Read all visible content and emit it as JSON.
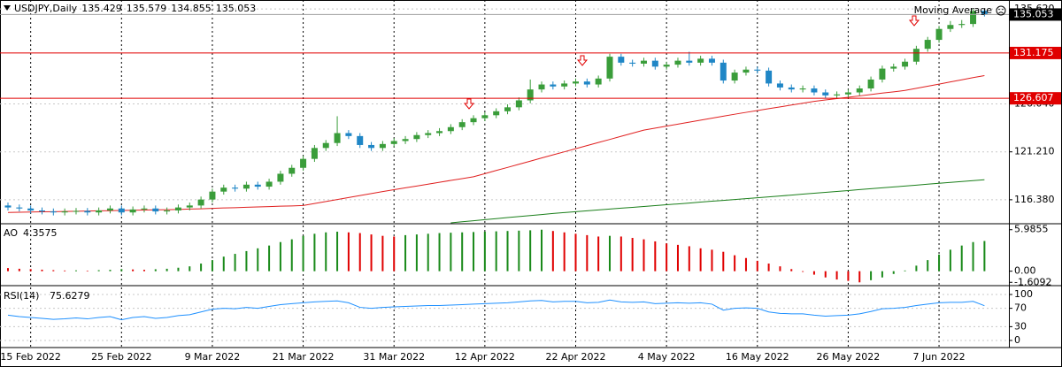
{
  "chart_data": [
    {
      "type": "candlestick",
      "symbol": "USDJPY,Daily",
      "indicator": "Moving Average",
      "categories": [
        null,
        null,
        "15 Feb 2022",
        null,
        null,
        null,
        null,
        null,
        null,
        null,
        "25 Feb 2022",
        null,
        null,
        null,
        null,
        null,
        null,
        null,
        "9 Mar 2022",
        null,
        null,
        null,
        null,
        null,
        null,
        null,
        "21 Mar 2022",
        null,
        null,
        null,
        null,
        null,
        null,
        null,
        "31 Mar 2022",
        null,
        null,
        null,
        null,
        null,
        null,
        null,
        "12 Apr 2022",
        null,
        null,
        null,
        null,
        null,
        null,
        null,
        "22 Apr 2022",
        null,
        null,
        null,
        null,
        null,
        null,
        null,
        "4 May 2022",
        null,
        null,
        null,
        null,
        null,
        null,
        null,
        "16 May 2022",
        null,
        null,
        null,
        null,
        null,
        null,
        null,
        "26 May 2022",
        null,
        null,
        null,
        null,
        null,
        null,
        null,
        "7 Jun 2022",
        null,
        null,
        null,
        null
      ],
      "open": [
        115.8,
        115.6,
        115.5,
        115.3,
        115.2,
        115.1,
        115.2,
        115.25,
        115.1,
        115.3,
        115.5,
        115.1,
        115.4,
        115.5,
        115.2,
        115.3,
        115.6,
        115.8,
        116.4,
        117.2,
        117.6,
        117.5,
        117.9,
        117.7,
        118.2,
        119.0,
        119.6,
        120.5,
        121.6,
        122.1,
        123.1,
        122.8,
        121.9,
        121.6,
        122.0,
        122.3,
        122.5,
        122.9,
        123.1,
        123.3,
        123.7,
        124.2,
        124.6,
        124.9,
        125.3,
        125.7,
        126.4,
        127.5,
        128.0,
        127.8,
        128.1,
        128.3,
        128.0,
        128.6,
        130.8,
        130.2,
        130.1,
        130.4,
        129.8,
        130.0,
        130.4,
        130.2,
        130.6,
        130.2,
        128.4,
        129.2,
        129.5,
        129.4,
        128.1,
        127.7,
        127.5,
        127.6,
        127.2,
        126.9,
        127.0,
        127.2,
        127.6,
        128.5,
        129.6,
        129.8,
        130.3,
        131.6,
        132.5,
        133.6,
        134.0,
        134.1,
        135.429
      ],
      "high": [
        116.1,
        115.9,
        115.8,
        115.6,
        115.5,
        115.5,
        115.55,
        115.55,
        115.6,
        115.8,
        115.8,
        115.7,
        115.8,
        115.8,
        115.6,
        115.9,
        116.1,
        116.7,
        117.5,
        117.9,
        117.9,
        118.2,
        118.2,
        118.5,
        119.3,
        119.9,
        120.8,
        121.9,
        122.4,
        124.8,
        123.4,
        123.1,
        122.2,
        122.3,
        122.6,
        122.8,
        123.2,
        123.4,
        123.6,
        124.0,
        124.5,
        124.9,
        125.2,
        125.6,
        126.0,
        126.7,
        128.5,
        128.3,
        128.3,
        128.4,
        128.6,
        128.6,
        128.9,
        131.1,
        131.1,
        130.5,
        130.7,
        130.7,
        130.3,
        130.7,
        131.3,
        130.9,
        130.9,
        130.5,
        129.5,
        129.8,
        129.8,
        129.7,
        128.4,
        128.0,
        127.9,
        127.9,
        127.5,
        127.3,
        127.5,
        127.9,
        128.8,
        129.9,
        130.1,
        130.6,
        131.9,
        132.8,
        133.9,
        134.4,
        134.5,
        135.6,
        135.579
      ],
      "low": [
        115.3,
        115.2,
        115.0,
        114.9,
        114.8,
        114.8,
        114.9,
        114.8,
        114.8,
        115.0,
        114.8,
        114.8,
        115.1,
        114.9,
        114.9,
        115.0,
        115.3,
        115.5,
        116.1,
        116.9,
        117.2,
        117.2,
        117.4,
        117.4,
        117.9,
        118.7,
        119.3,
        120.2,
        121.3,
        121.8,
        122.5,
        121.6,
        121.3,
        121.3,
        121.7,
        122.0,
        122.2,
        122.6,
        122.8,
        123.0,
        123.4,
        123.9,
        124.3,
        124.6,
        125.0,
        125.4,
        126.1,
        127.2,
        127.5,
        127.5,
        127.8,
        127.7,
        127.7,
        128.3,
        129.9,
        129.8,
        129.8,
        129.5,
        129.5,
        129.7,
        129.9,
        129.9,
        129.9,
        128.1,
        128.1,
        128.9,
        129.1,
        127.8,
        127.4,
        127.2,
        127.2,
        126.9,
        126.6,
        126.6,
        126.7,
        126.9,
        127.3,
        128.2,
        129.3,
        129.5,
        130.0,
        131.3,
        132.2,
        133.3,
        133.7,
        133.8,
        134.855
      ],
      "close": [
        115.6,
        115.5,
        115.3,
        115.2,
        115.1,
        115.2,
        115.25,
        115.1,
        115.3,
        115.5,
        115.1,
        115.4,
        115.5,
        115.2,
        115.3,
        115.6,
        115.8,
        116.4,
        117.2,
        117.6,
        117.5,
        117.9,
        117.7,
        118.2,
        119.0,
        119.6,
        120.5,
        121.6,
        122.1,
        123.1,
        122.8,
        121.9,
        121.6,
        122.0,
        122.3,
        122.5,
        122.9,
        123.1,
        123.3,
        123.7,
        124.2,
        124.6,
        124.9,
        125.3,
        125.7,
        126.4,
        127.5,
        128.0,
        127.8,
        128.1,
        128.3,
        128.0,
        128.6,
        130.8,
        130.2,
        130.1,
        130.4,
        129.8,
        130.0,
        130.4,
        130.2,
        130.6,
        130.2,
        128.4,
        129.2,
        129.5,
        129.4,
        128.1,
        127.7,
        127.5,
        127.6,
        127.2,
        126.9,
        127.0,
        127.2,
        127.6,
        128.5,
        129.6,
        129.8,
        130.3,
        131.6,
        132.5,
        133.6,
        134.0,
        134.1,
        135.4,
        135.053
      ],
      "up_color": "#3a9d3a",
      "down_color": "#1f86c6",
      "series": [
        {
          "color": "#e02020",
          "values": [
            115.1,
            115.12,
            115.14,
            115.16,
            115.18,
            115.2,
            115.22,
            115.24,
            115.26,
            115.28,
            115.3,
            115.32,
            115.34,
            115.36,
            115.38,
            115.4,
            115.44,
            115.47,
            115.51,
            115.55,
            115.58,
            115.62,
            115.65,
            115.69,
            115.73,
            115.76,
            115.8,
            116.0,
            116.2,
            116.4,
            116.6,
            116.8,
            117.0,
            117.2,
            117.39,
            117.58,
            117.76,
            117.95,
            118.14,
            118.33,
            118.51,
            118.7,
            119.01,
            119.33,
            119.64,
            119.96,
            120.27,
            120.59,
            120.9,
            121.21,
            121.53,
            121.84,
            122.15,
            122.46,
            122.78,
            123.09,
            123.4,
            123.6,
            123.8,
            124.0,
            124.2,
            124.4,
            124.6,
            124.8,
            125.0,
            125.19,
            125.37,
            125.56,
            125.74,
            125.93,
            126.11,
            126.3,
            126.44,
            126.58,
            126.71,
            126.85,
            126.99,
            127.13,
            127.26,
            127.4,
            127.61,
            127.83,
            128.04,
            128.26,
            128.47,
            128.69,
            128.9
          ]
        },
        {
          "color": "#1b7f1b",
          "values": [
            null,
            null,
            null,
            null,
            null,
            null,
            null,
            null,
            null,
            null,
            null,
            null,
            null,
            null,
            null,
            null,
            null,
            null,
            null,
            null,
            null,
            null,
            null,
            null,
            null,
            null,
            null,
            null,
            null,
            null,
            null,
            null,
            null,
            null,
            null,
            null,
            null,
            null,
            null,
            114.05,
            114.16,
            114.26,
            114.37,
            114.47,
            114.58,
            114.68,
            114.79,
            114.89,
            115.0,
            115.09,
            115.18,
            115.26,
            115.35,
            115.44,
            115.53,
            115.61,
            115.7,
            115.79,
            115.88,
            115.96,
            116.05,
            116.14,
            116.23,
            116.31,
            116.4,
            116.49,
            116.58,
            116.67,
            116.76,
            116.85,
            116.95,
            117.04,
            117.13,
            117.22,
            117.31,
            117.4,
            117.49,
            117.58,
            117.67,
            117.76,
            117.85,
            117.95,
            118.04,
            118.13,
            118.22,
            118.31,
            118.4
          ]
        }
      ],
      "hlines": [
        {
          "value": 131.175,
          "color": "#e00000"
        },
        {
          "value": 126.607,
          "color": "#e00000"
        }
      ],
      "ylim": [
        114.05,
        136.34
      ],
      "yticks": [
        {
          "value": 116.38,
          "label": "116.380"
        },
        {
          "value": 121.21,
          "label": "121.210"
        },
        {
          "value": 126.04,
          "label": "126.040"
        },
        {
          "value": 135.62,
          "label": "135.620"
        }
      ],
      "grid": true
    },
    {
      "type": "bar",
      "title": "AO",
      "values": [
        0.45,
        0.35,
        0.3,
        0.22,
        0.15,
        0.1,
        0.12,
        0.08,
        0.15,
        0.2,
        0.3,
        0.25,
        0.2,
        0.28,
        0.35,
        0.5,
        0.7,
        1.1,
        1.6,
        2.1,
        2.5,
        2.9,
        3.3,
        3.7,
        4.2,
        4.6,
        5.1,
        5.4,
        5.6,
        5.7,
        5.6,
        5.5,
        5.3,
        5.1,
        5.0,
        5.2,
        5.3,
        5.4,
        5.5,
        5.55,
        5.6,
        5.65,
        5.7,
        5.75,
        5.8,
        5.85,
        5.9,
        5.9855,
        5.8,
        5.6,
        5.4,
        5.2,
        5.0,
        5.1,
        5.0,
        4.8,
        4.6,
        4.3,
        4.0,
        3.8,
        3.6,
        3.3,
        3.1,
        2.8,
        2.3,
        1.9,
        1.5,
        1.1,
        0.7,
        0.3,
        -0.1,
        -0.5,
        -0.9,
        -1.2,
        -1.4,
        -1.6092,
        -1.3,
        -0.9,
        -0.4,
        0.1,
        0.8,
        1.6,
        2.4,
        3.1,
        3.7,
        4.2,
        4.3575
      ],
      "up_color": "#1a8a1a",
      "down_color": "#e00000",
      "ylim": [
        -1.83,
        6.59
      ],
      "yticks": [
        -1.6092,
        {
          "value": 0,
          "label": "0.00"
        },
        5.9855
      ],
      "grid": false
    },
    {
      "type": "line",
      "title": "RSI(14)",
      "values": [
        55,
        52,
        50,
        48,
        46,
        47,
        49,
        47,
        50,
        52,
        45,
        50,
        52,
        48,
        50,
        54,
        56,
        62,
        68,
        70,
        69,
        72,
        70,
        74,
        78,
        80,
        82,
        84,
        85,
        86,
        82,
        72,
        70,
        72,
        73,
        74,
        75,
        76,
        76,
        77,
        78,
        79,
        80,
        81,
        82,
        84,
        86,
        87,
        84,
        85,
        85,
        82,
        83,
        88,
        84,
        83,
        84,
        80,
        81,
        82,
        81,
        82,
        79,
        66,
        70,
        71,
        70,
        62,
        59,
        58,
        58,
        55,
        53,
        54,
        55,
        58,
        63,
        69,
        70,
        72,
        76,
        79,
        82,
        83,
        83,
        85,
        75.6279
      ],
      "color": "#1e90ff",
      "ylim": [
        -13.5,
        113.5
      ],
      "yticks": [
        0,
        30,
        70,
        100
      ],
      "grid": true
    }
  ]
}
